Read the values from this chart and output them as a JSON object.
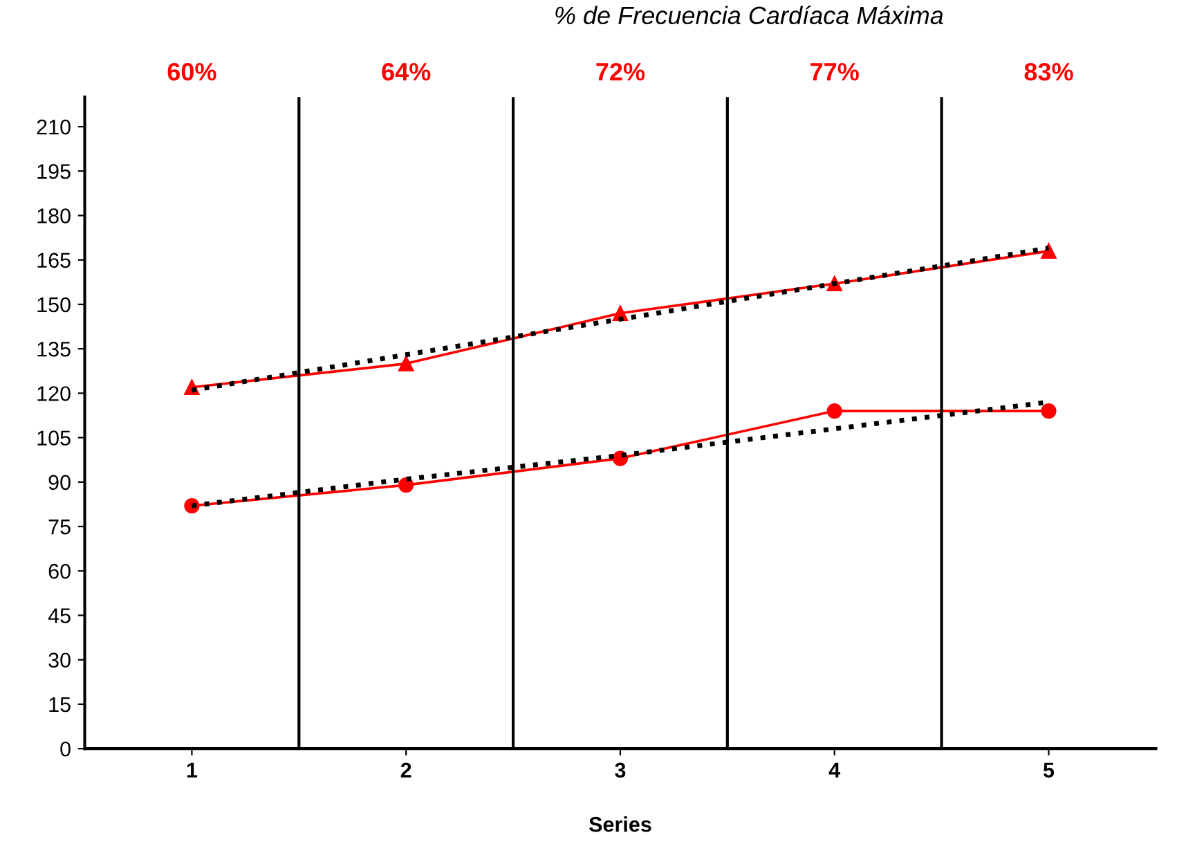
{
  "chart_data": {
    "type": "line",
    "title": "% de Frecuencia Cardíaca Máxima",
    "xlabel": "Series",
    "x": [
      1,
      2,
      3,
      4,
      5
    ],
    "series": [
      {
        "color": "#ff0000",
        "marker": "triangle",
        "values": [
          122,
          130,
          147,
          157,
          168
        ]
      },
      {
        "color": "#ff0000",
        "marker": "circle",
        "values": [
          82,
          89,
          98,
          114,
          114
        ]
      },
      {
        "color": "#000000",
        "marker": "none",
        "line_style": "dotted",
        "values": [
          121,
          133,
          145,
          157,
          169
        ]
      },
      {
        "color": "#000000",
        "marker": "none",
        "line_style": "dotted",
        "values": [
          82,
          91,
          99,
          108,
          117
        ]
      }
    ],
    "xlim": [
      0.5,
      5.5
    ],
    "xticks": [
      1,
      2,
      3,
      4,
      5
    ],
    "ylim": [
      0,
      220
    ],
    "yticks": [
      0,
      15,
      30,
      45,
      60,
      75,
      90,
      105,
      120,
      135,
      150,
      165,
      180,
      195,
      210
    ],
    "ref_lines": [
      {
        "axis": "x",
        "value": 1.5,
        "color": "#000000"
      },
      {
        "axis": "x",
        "value": 2.5,
        "color": "#000000"
      },
      {
        "axis": "x",
        "value": 3.5,
        "color": "#000000"
      },
      {
        "axis": "x",
        "value": 4.5,
        "color": "#000000"
      }
    ],
    "annotations": [
      "60%",
      "64%",
      "72%",
      "77%",
      "83%"
    ],
    "grid": false
  }
}
